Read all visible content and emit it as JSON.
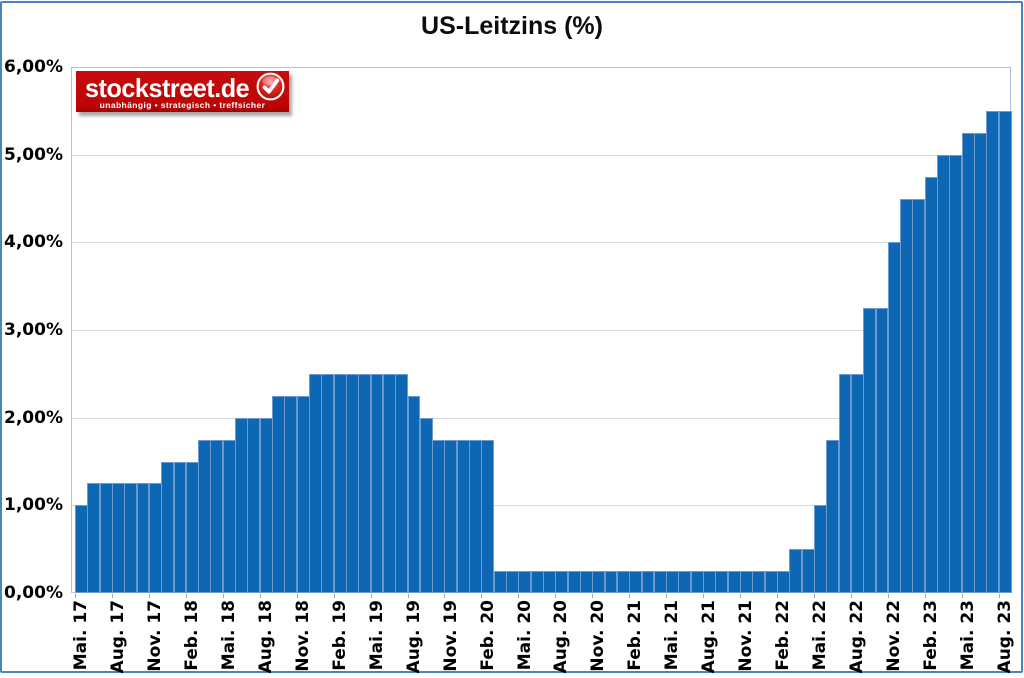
{
  "title": "US-Leitzins (%)",
  "logo": {
    "brand": "stockstreet.de",
    "tagline": "unabhängig • strategisch • treffsicher",
    "badge_icon": "check-icon",
    "brand_red": "#c00808"
  },
  "chart_data": {
    "type": "bar",
    "title": "US-Leitzins (%)",
    "unit": "%",
    "ylim": [
      0,
      6
    ],
    "ytick_step": 1,
    "ytick_labels": [
      "0,00%",
      "1,00%",
      "2,00%",
      "3,00%",
      "4,00%",
      "5,00%",
      "6,00%"
    ],
    "xtick_labels": [
      "Mai. 17",
      "Aug. 17",
      "Nov. 17",
      "Feb. 18",
      "Mai. 18",
      "Aug. 18",
      "Nov. 18",
      "Feb. 19",
      "Mai. 19",
      "Aug. 19",
      "Nov. 19",
      "Feb. 20",
      "Mai. 20",
      "Aug. 20",
      "Nov. 20",
      "Feb. 21",
      "Mai. 21",
      "Aug. 21",
      "Nov. 21",
      "Feb. 22",
      "Mai. 22",
      "Aug. 22",
      "Nov. 22",
      "Feb. 23",
      "Mai. 23",
      "Aug. 23"
    ],
    "xtick_interval": 3,
    "grid": "horizontal",
    "legend": "none",
    "bar_color": "#0d67b5",
    "bar_border_color": "#6f9ad0",
    "gridline_color": "#d9d9d9",
    "plot_border_color": "#aec2dc",
    "outer_border_color": "#4a82c2",
    "series": [
      {
        "name": "US-Leitzins",
        "values": [
          1.0,
          1.25,
          1.25,
          1.25,
          1.25,
          1.25,
          1.25,
          1.5,
          1.5,
          1.5,
          1.75,
          1.75,
          1.75,
          2.0,
          2.0,
          2.0,
          2.25,
          2.25,
          2.25,
          2.5,
          2.5,
          2.5,
          2.5,
          2.5,
          2.5,
          2.5,
          2.5,
          2.25,
          2.0,
          1.75,
          1.75,
          1.75,
          1.75,
          1.75,
          0.25,
          0.25,
          0.25,
          0.25,
          0.25,
          0.25,
          0.25,
          0.25,
          0.25,
          0.25,
          0.25,
          0.25,
          0.25,
          0.25,
          0.25,
          0.25,
          0.25,
          0.25,
          0.25,
          0.25,
          0.25,
          0.25,
          0.25,
          0.25,
          0.5,
          0.5,
          1.0,
          1.75,
          2.5,
          2.5,
          3.25,
          3.25,
          4.0,
          4.5,
          4.5,
          4.75,
          5.0,
          5.0,
          5.25,
          5.25,
          5.5,
          5.5
        ]
      }
    ]
  }
}
